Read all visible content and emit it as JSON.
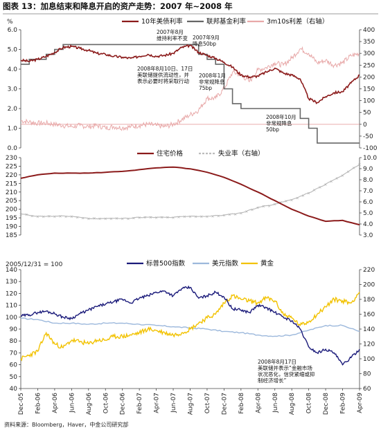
{
  "figure": {
    "title": "图表 13：加息结束和降息开启的资产走势：2007 年~2008 年",
    "source": "资料来源：Bloomberg，Haver，中金公司研究部"
  },
  "colors": {
    "treasury": "#8b1a1a",
    "fedfunds": "#666666",
    "spread": "#e8a9a9",
    "house": "#8b1a1a",
    "unemp": "#bcbcbc",
    "sp500": "#1a1a7a",
    "usd": "#9cb8dc",
    "gold": "#f2c200",
    "zeroline": "#e8a0a0"
  },
  "x_labels": [
    "Dec-05",
    "Feb-06",
    "Apr-06",
    "Jun-06",
    "Aug-06",
    "Oct-06",
    "Dec-06",
    "Feb-07",
    "Apr-07",
    "Jun-07",
    "Aug-07",
    "Oct-07",
    "Dec-07",
    "Feb-08",
    "Apr-08",
    "Jun-08",
    "Aug-08",
    "Oct-08",
    "Dec-08",
    "Feb-09",
    "Apr-09"
  ],
  "chart_data": [
    {
      "type": "line",
      "panel": "top",
      "ylabel": "%",
      "yticks_left": [
        "0.0",
        "1.0",
        "2.0",
        "3.0",
        "4.0",
        "5.0",
        "6.0"
      ],
      "ylim_left": [
        0,
        6
      ],
      "yticks_right": [
        "-100",
        "-50",
        "0",
        "50",
        "100",
        "150",
        "200",
        "250",
        "300",
        "350",
        "400"
      ],
      "ylim_right": [
        -100,
        400
      ],
      "legend": [
        "10年美债利率",
        "联邦基金利率",
        "3m10s利差（右轴）"
      ],
      "series": [
        {
          "name": "10年美债利率",
          "axis": "left",
          "x": [
            0,
            1,
            2,
            3,
            4,
            5,
            6,
            7,
            8,
            9,
            10,
            11,
            12,
            13,
            14,
            15,
            16,
            17,
            18,
            19,
            20,
            21,
            22,
            23,
            24,
            25,
            26,
            27,
            28,
            29,
            30,
            31,
            32,
            33,
            34,
            35,
            36,
            37,
            38,
            39,
            40
          ],
          "values": [
            4.45,
            4.4,
            4.5,
            4.65,
            4.85,
            5.1,
            5.15,
            5.05,
            4.95,
            4.8,
            4.75,
            4.65,
            4.6,
            4.55,
            4.65,
            4.75,
            4.65,
            4.7,
            4.8,
            5.1,
            5.2,
            4.85,
            4.7,
            4.55,
            4.35,
            4.1,
            3.7,
            3.6,
            3.65,
            3.85,
            4.05,
            3.8,
            3.7,
            3.5,
            2.5,
            2.3,
            2.6,
            2.8,
            2.85,
            3.3,
            3.7
          ]
        },
        {
          "name": "联邦基金利率",
          "axis": "left",
          "x": [
            0,
            1,
            2,
            3,
            4,
            5,
            6,
            7,
            8,
            9,
            10,
            11,
            12,
            13,
            14,
            15,
            16,
            17,
            18,
            19,
            20,
            21,
            22,
            23,
            24,
            25,
            26,
            27,
            28,
            29,
            30,
            31,
            32,
            33,
            34,
            35,
            36,
            37,
            38,
            39,
            40
          ],
          "values": [
            4.25,
            4.5,
            4.5,
            4.75,
            5.0,
            5.25,
            5.25,
            5.25,
            5.25,
            5.25,
            5.25,
            5.25,
            5.25,
            5.25,
            5.25,
            5.25,
            5.25,
            5.25,
            5.25,
            5.25,
            5.25,
            4.75,
            4.5,
            4.25,
            3.0,
            2.25,
            2.0,
            2.0,
            2.0,
            2.0,
            2.0,
            2.0,
            2.0,
            1.5,
            1.0,
            0.25,
            0.25,
            0.25,
            0.25,
            0.25,
            0.25
          ]
        },
        {
          "name": "3m10s利差（右轴）",
          "axis": "right",
          "x": [
            0,
            1,
            2,
            3,
            4,
            5,
            6,
            7,
            8,
            9,
            10,
            11,
            12,
            13,
            14,
            15,
            16,
            17,
            18,
            19,
            20,
            21,
            22,
            23,
            24,
            25,
            26,
            27,
            28,
            29,
            30,
            31,
            32,
            33,
            34,
            35,
            36,
            37,
            38,
            39,
            40
          ],
          "values": [
            15,
            10,
            5,
            5,
            0,
            -5,
            -10,
            -5,
            -10,
            -5,
            -15,
            -10,
            -15,
            -10,
            -5,
            0,
            -5,
            -10,
            0,
            20,
            40,
            60,
            110,
            110,
            150,
            220,
            210,
            180,
            230,
            240,
            260,
            250,
            280,
            320,
            300,
            260,
            270,
            250,
            260,
            290,
            300
          ]
        }
      ],
      "annotations": [
        "2007年8月 维持利率不变",
        "2007年9月 降息50bp",
        "2008年8月10日、17日 美联储提供流动性，并 表示必要时将采取行动",
        "2008年1月 非常规降息 75bp",
        "2008年10月 非常规降息 50bp"
      ]
    },
    {
      "type": "line",
      "panel": "middle",
      "yticks_left": [
        "185",
        "190",
        "195",
        "200",
        "205",
        "210",
        "215",
        "220",
        "225",
        "230"
      ],
      "ylim_left": [
        185,
        230
      ],
      "yticks_right": [
        "3.0",
        "4.0",
        "5.0",
        "6.0",
        "7.0",
        "8.0",
        "9.0",
        "10.0"
      ],
      "ylim_right": [
        3,
        10
      ],
      "legend": [
        "住宅价格",
        "失业率（右轴）"
      ],
      "series": [
        {
          "name": "住宅价格",
          "axis": "left",
          "x": [
            0,
            2,
            4,
            6,
            8,
            10,
            12,
            14,
            16,
            18,
            20,
            22,
            24,
            26,
            28,
            30,
            32,
            34,
            36,
            38,
            40
          ],
          "values": [
            218,
            220,
            221,
            221,
            221,
            221.5,
            222,
            223,
            224,
            224.5,
            223.5,
            221.5,
            218.5,
            214.5,
            210,
            205,
            200,
            196,
            193,
            193.5,
            191
          ]
        },
        {
          "name": "失业率（右轴）",
          "axis": "right",
          "x": [
            0,
            2,
            4,
            6,
            8,
            10,
            12,
            14,
            16,
            18,
            20,
            22,
            24,
            26,
            28,
            30,
            32,
            34,
            36,
            38,
            40
          ],
          "values": [
            4.9,
            4.7,
            4.7,
            4.7,
            4.5,
            4.5,
            4.5,
            4.6,
            4.6,
            4.6,
            4.7,
            4.7,
            4.8,
            5.0,
            5.5,
            5.8,
            6.2,
            6.8,
            7.6,
            8.4,
            9.4
          ]
        }
      ]
    },
    {
      "type": "line",
      "panel": "bottom",
      "ylabel": "2005/12/31 = 100",
      "yticks_left": [
        "40",
        "50",
        "60",
        "70",
        "80",
        "90",
        "100",
        "110",
        "120",
        "130",
        "140"
      ],
      "ylim_left": [
        40,
        140
      ],
      "yticks_right": [
        "60",
        "80",
        "100",
        "120",
        "140",
        "160",
        "180",
        "200",
        "220"
      ],
      "ylim_right": [
        60,
        220
      ],
      "legend": [
        "标普500指数",
        "美元指数",
        "黄金"
      ],
      "series": [
        {
          "name": "标普500指数",
          "axis": "left",
          "x": [
            0,
            1,
            2,
            3,
            4,
            5,
            6,
            7,
            8,
            9,
            10,
            11,
            12,
            13,
            14,
            15,
            16,
            17,
            18,
            19,
            20,
            21,
            22,
            23,
            24,
            25,
            26,
            27,
            28,
            29,
            30,
            31,
            32,
            33,
            34,
            35,
            36,
            37,
            38,
            39,
            40
          ],
          "values": [
            101,
            102,
            104,
            105,
            103,
            100,
            99,
            103,
            106,
            109,
            111,
            113,
            115,
            112,
            116,
            118,
            121,
            122,
            118,
            124,
            125,
            116,
            118,
            121,
            117,
            107,
            106,
            104,
            110,
            108,
            104,
            100,
            97,
            90,
            75,
            70,
            73,
            70,
            60,
            66,
            73
          ]
        },
        {
          "name": "美元指数",
          "axis": "left",
          "x": [
            0,
            2,
            4,
            6,
            8,
            10,
            12,
            14,
            16,
            18,
            20,
            22,
            24,
            26,
            28,
            30,
            32,
            34,
            36,
            38,
            40
          ],
          "values": [
            99,
            98,
            95,
            95,
            94,
            95,
            95,
            94,
            93,
            92,
            91,
            90,
            88,
            87,
            85,
            84,
            85,
            89,
            93,
            93,
            88
          ]
        },
        {
          "name": "黄金",
          "axis": "right",
          "x": [
            0,
            1,
            2,
            3,
            4,
            5,
            6,
            7,
            8,
            9,
            10,
            11,
            12,
            13,
            14,
            15,
            16,
            17,
            18,
            19,
            20,
            21,
            22,
            23,
            24,
            25,
            26,
            27,
            28,
            29,
            30,
            31,
            32,
            33,
            34,
            35,
            36,
            37,
            38,
            39,
            40
          ],
          "values": [
            100,
            105,
            110,
            135,
            120,
            115,
            125,
            123,
            120,
            125,
            125,
            130,
            130,
            132,
            135,
            140,
            138,
            135,
            132,
            135,
            140,
            148,
            155,
            160,
            175,
            185,
            180,
            178,
            175,
            182,
            178,
            160,
            155,
            145,
            150,
            160,
            170,
            180,
            178,
            175,
            190
          ]
        }
      ],
      "annotations": [
        "2008年8月17日 美联储并表示“金融市场 状况恶化，信贷紧缩或抑 制经济增长”"
      ]
    }
  ]
}
